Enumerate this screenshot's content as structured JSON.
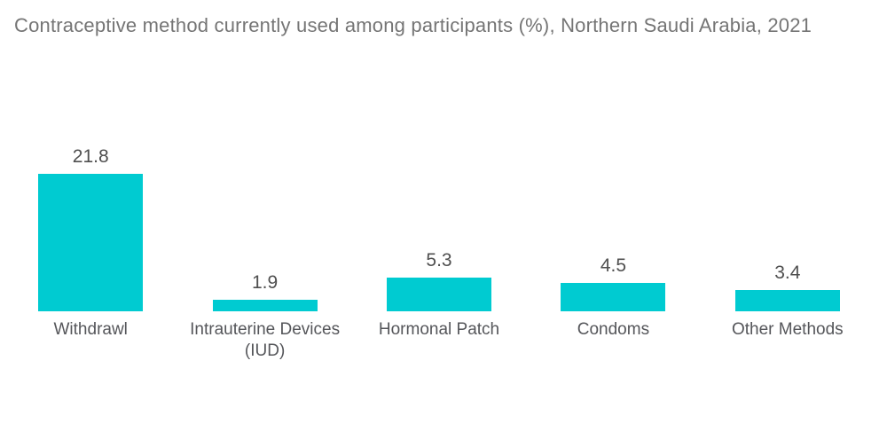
{
  "title": "Contraceptive method currently used among participants (%), Northern Saudi Arabia, 2021",
  "colors": {
    "background": "#FFFFFF",
    "bar_fill": "#00CBD1",
    "title_text": "#757575",
    "value_text": "#4F4F4F",
    "category_text": "#55565A"
  },
  "chart_data": {
    "type": "bar",
    "title": "Contraceptive method currently used among participants (%), Northern Saudi Arabia, 2021",
    "orientation": "vertical",
    "categories": [
      "Withdrawl",
      "Intrauterine Devices (IUD)",
      "Hormonal Patch",
      "Condoms",
      "Other Methods"
    ],
    "values": [
      21.8,
      1.9,
      5.3,
      4.5,
      3.4
    ],
    "value_labels": [
      "21.8",
      "1.9",
      "5.3",
      "4.5",
      "3.4"
    ],
    "unit": "%",
    "xlabel": "",
    "ylabel": "",
    "ylim": [
      0,
      25
    ],
    "grid": false,
    "legend": false,
    "axes_visible": false,
    "data_labels_position": "above-bar"
  }
}
